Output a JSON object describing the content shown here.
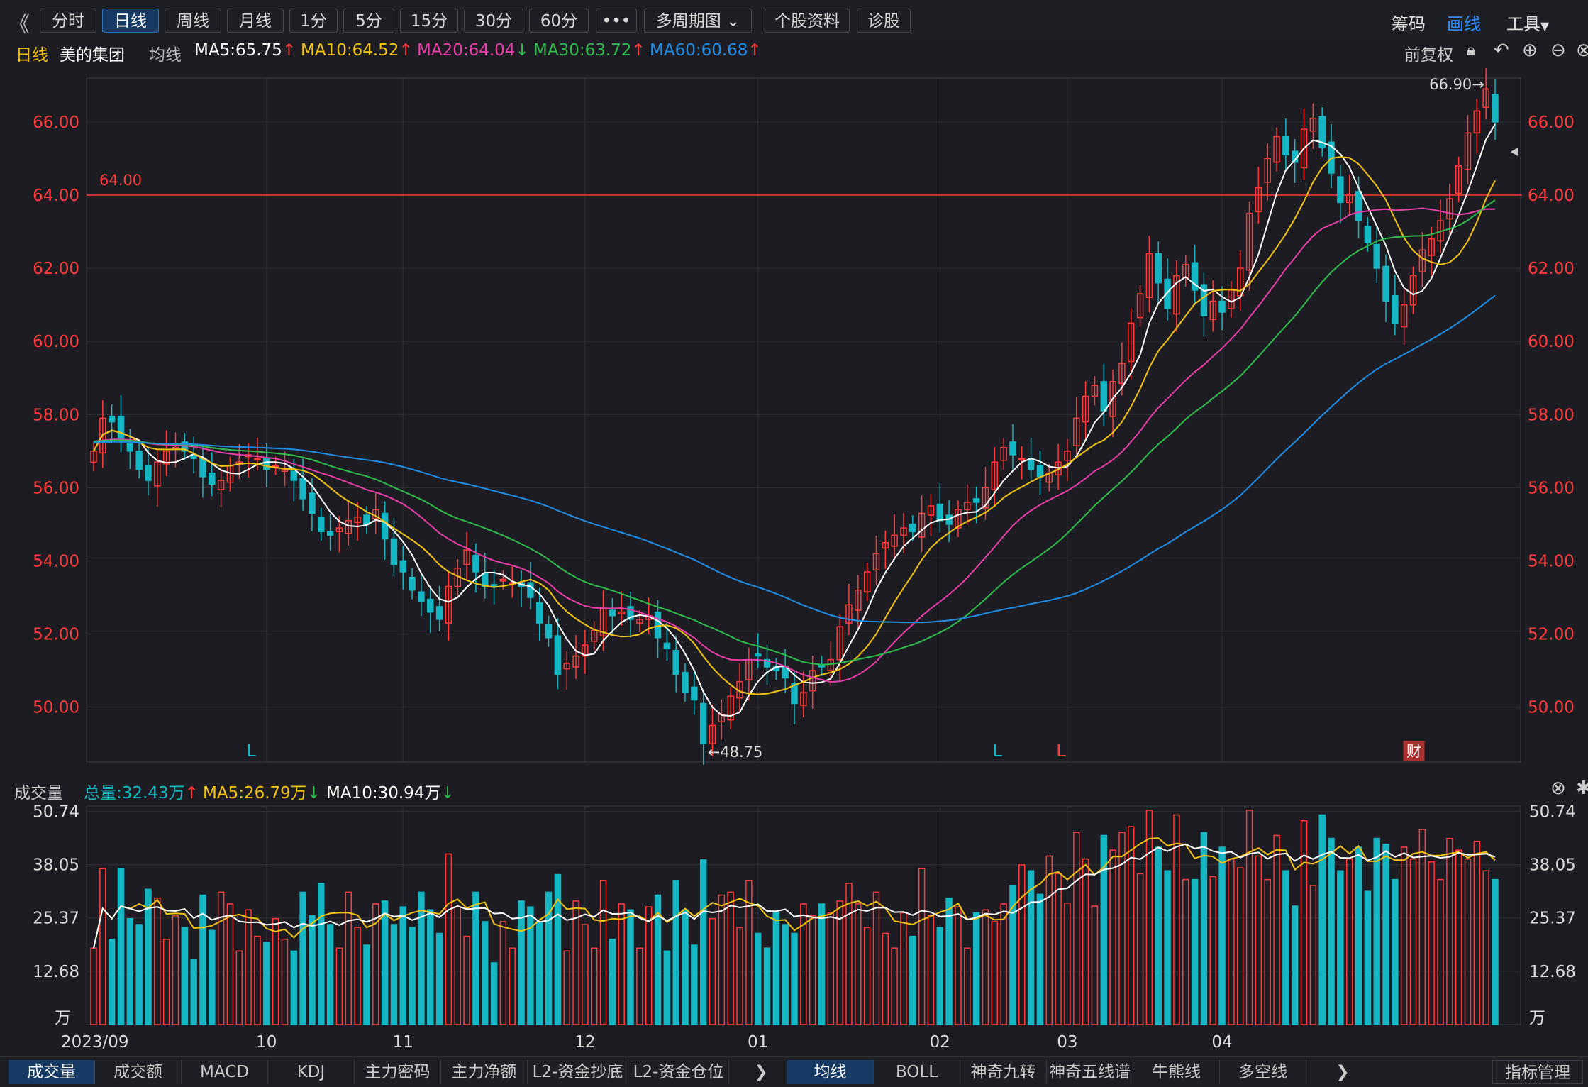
{
  "toolbar": {
    "tabs": [
      "分时",
      "日线",
      "周线",
      "月线",
      "1分",
      "5分",
      "15分",
      "30分",
      "60分",
      "•••",
      "多周期图",
      "个股资料",
      "诊股"
    ],
    "active_tab": "日线",
    "right": [
      "筹码",
      "画线",
      "工具"
    ]
  },
  "info": {
    "period": "日线",
    "stock": "美的集团",
    "ma_label": "均线",
    "ma5": "MA5:65.75",
    "ma10": "MA10:64.52",
    "ma20": "MA20:64.04",
    "ma30": "MA30:63.72",
    "ma60": "MA60:60.68",
    "adjust": "前复权"
  },
  "vol_info": {
    "label": "成交量",
    "total": "总量:32.43万",
    "ma5": "MA5:26.79万",
    "ma10": "MA10:30.94万"
  },
  "colors": {
    "up": "#ff3b3b",
    "down": "#16b7c4",
    "ma5": "#ffffff",
    "ma10": "#f3c313",
    "ma20": "#e83ea8",
    "ma30": "#2ebd4b",
    "ma60": "#1e8de6",
    "bg": "#1c1c22"
  },
  "bottom_tabs_left": [
    "成交量",
    "成交额",
    "MACD",
    "KDJ",
    "主力密码",
    "主力净额",
    "L2-资金抄底",
    "L2-资金仓位"
  ],
  "bottom_tabs_right": [
    "均线",
    "BOLL",
    "神奇九转",
    "神奇五线谱",
    "牛熊线",
    "多空线"
  ],
  "bottom_manage": "指标管理",
  "chart_data": {
    "type": "candlestick",
    "price_ylim": [
      48.5,
      67.2
    ],
    "price_ticks": [
      "50.00",
      "52.00",
      "54.00",
      "56.00",
      "58.00",
      "60.00",
      "62.00",
      "64.00",
      "66.00"
    ],
    "hline": {
      "value": 64.0,
      "label": "64.00"
    },
    "annotations": {
      "high": "66.90→",
      "low": "←48.75",
      "markers": [
        "L",
        "L",
        "L",
        "财"
      ]
    },
    "volume_ticks": [
      "50.74",
      "38.05",
      "25.37",
      "12.68"
    ],
    "volume_unit": "万",
    "x_labels": [
      "2023/09",
      "10",
      "11",
      "12",
      "01",
      "02",
      "03",
      "04"
    ],
    "x_label_index": [
      0,
      19,
      34,
      54,
      73,
      93,
      107,
      124
    ],
    "closes": [
      57.0,
      57.9,
      57.8,
      57.3,
      57.0,
      56.5,
      56.2,
      56.7,
      57.0,
      57.1,
      57.0,
      56.8,
      56.3,
      56.1,
      56.2,
      56.6,
      56.7,
      56.9,
      56.8,
      56.5,
      56.6,
      56.5,
      56.2,
      55.7,
      55.3,
      54.8,
      54.7,
      54.9,
      55.1,
      55.2,
      55.0,
      55.4,
      54.6,
      53.9,
      53.7,
      53.2,
      52.9,
      52.6,
      52.4,
      53.3,
      53.8,
      54.3,
      53.7,
      53.3,
      53.3,
      53.5,
      53.4,
      53.3,
      53.0,
      52.3,
      51.9,
      50.9,
      51.2,
      51.4,
      51.7,
      52.1,
      52.7,
      52.5,
      52.6,
      52.4,
      52.4,
      52.5,
      51.9,
      51.6,
      50.9,
      50.4,
      50.2,
      49.0,
      49.5,
      49.8,
      50.3,
      50.7,
      51.3,
      51.4,
      51.1,
      51.0,
      50.8,
      50.1,
      50.4,
      51.0,
      51.1,
      51.3,
      52.2,
      52.8,
      53.2,
      53.7,
      54.2,
      54.5,
      54.7,
      54.9,
      54.8,
      55.3,
      55.5,
      55.1,
      55.0,
      55.4,
      55.6,
      55.6,
      56.0,
      56.7,
      57.1,
      56.9,
      56.8,
      56.5,
      56.3,
      56.4,
      56.7,
      57.0,
      57.9,
      58.5,
      58.8,
      58.1,
      58.9,
      59.4,
      60.5,
      61.3,
      62.4,
      61.6,
      60.9,
      61.8,
      62.1,
      61.4,
      60.7,
      61.1,
      60.8,
      61.4,
      62.0,
      63.5,
      64.2,
      65.0,
      65.6,
      65.1,
      64.9,
      65.8,
      66.1,
      65.3,
      64.6,
      63.8,
      64.0,
      63.3,
      62.7,
      62.0,
      61.1,
      60.5,
      61.0,
      61.8,
      62.5,
      62.8,
      63.3,
      63.9,
      64.8,
      65.7,
      66.3,
      66.9,
      66.0
    ]
  }
}
